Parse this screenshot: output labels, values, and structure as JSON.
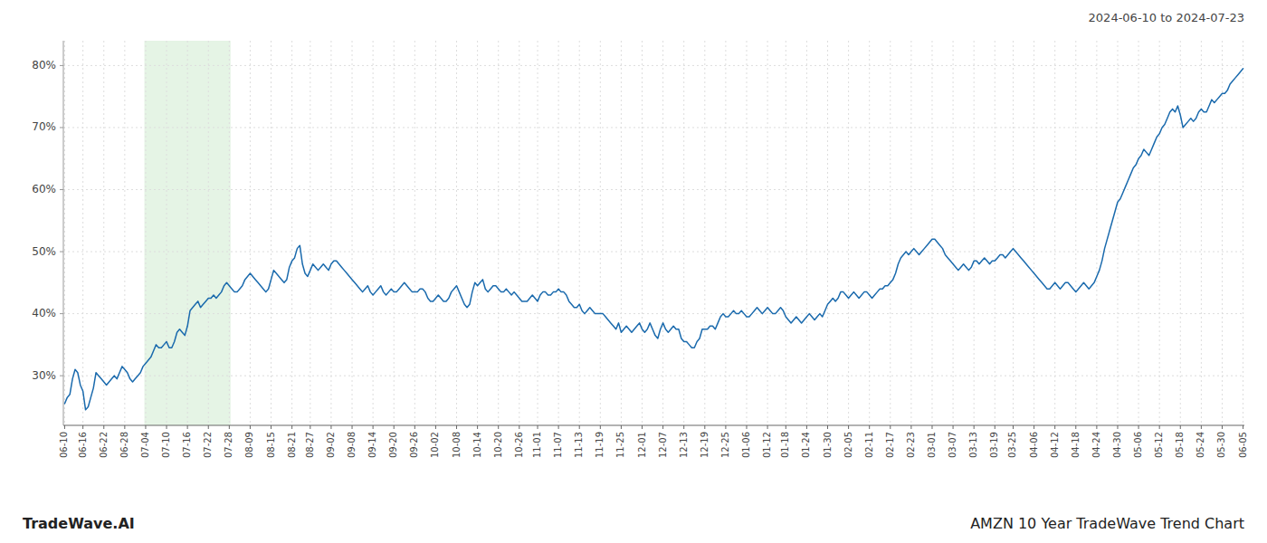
{
  "chart_data": {
    "type": "line",
    "title": "AMZN 10 Year TradeWave Trend Chart",
    "subtitle": "2024-06-10 to 2024-07-23",
    "annotations": [
      "TradeWave.AI"
    ],
    "color": "#1a6aad",
    "grid": true,
    "ylim": [
      22,
      84
    ],
    "yticks": [
      {
        "value": 30,
        "label": "30%"
      },
      {
        "value": 40,
        "label": "40%"
      },
      {
        "value": 50,
        "label": "50%"
      },
      {
        "value": 60,
        "label": "60%"
      },
      {
        "value": 70,
        "label": "70%"
      },
      {
        "value": 80,
        "label": "80%"
      }
    ],
    "highlight": {
      "start": "07-04",
      "end": "07-28",
      "color": "#d4ecd4"
    },
    "categories": [
      "06-10",
      null,
      null,
      null,
      null,
      null,
      null,
      "06-16",
      null,
      null,
      null,
      null,
      null,
      null,
      null,
      "06-22",
      null,
      null,
      null,
      null,
      null,
      null,
      null,
      "06-28",
      null,
      null,
      null,
      null,
      null,
      null,
      null,
      "07-04",
      null,
      null,
      null,
      null,
      null,
      null,
      null,
      "07-10",
      null,
      null,
      null,
      null,
      null,
      null,
      null,
      "07-16",
      null,
      null,
      null,
      null,
      null,
      null,
      null,
      "07-22",
      null,
      null,
      null,
      null,
      null,
      null,
      null,
      "07-28",
      null,
      null,
      null,
      null,
      null,
      null,
      null,
      "08-09",
      null,
      null,
      null,
      null,
      null,
      null,
      null,
      "08-15",
      null,
      null,
      null,
      null,
      null,
      null,
      null,
      "08-21",
      null,
      null,
      null,
      null,
      null,
      null,
      "08-27",
      null,
      null,
      null,
      null,
      null,
      null,
      null,
      "09-02",
      null,
      null,
      null,
      null,
      null,
      null,
      null,
      "09-08",
      null,
      null,
      null,
      null,
      null,
      null,
      null,
      "09-14",
      null,
      null,
      null,
      null,
      null,
      null,
      null,
      "09-20",
      null,
      null,
      null,
      null,
      null,
      null,
      null,
      "09-26",
      null,
      null,
      null,
      null,
      null,
      null,
      null,
      "10-02",
      null,
      null,
      null,
      null,
      null,
      null,
      null,
      "10-08",
      null,
      null,
      null,
      null,
      null,
      null,
      null,
      "10-14",
      null,
      null,
      null,
      null,
      null,
      null,
      null,
      "10-20",
      null,
      null,
      null,
      null,
      null,
      null,
      null,
      "10-26",
      null,
      null,
      null,
      null,
      null,
      null,
      "11-01",
      null,
      null,
      null,
      null,
      null,
      null,
      null,
      "11-07",
      null,
      null,
      null,
      null,
      null,
      null,
      null,
      "11-13",
      null,
      null,
      null,
      null,
      null,
      null,
      null,
      "11-19",
      null,
      null,
      null,
      null,
      null,
      null,
      null,
      "11-25",
      null,
      null,
      null,
      null,
      null,
      null,
      null,
      "12-01",
      null,
      null,
      null,
      null,
      null,
      null,
      null,
      "12-07",
      null,
      null,
      null,
      null,
      null,
      null,
      null,
      "12-13",
      null,
      null,
      null,
      null,
      null,
      null,
      null,
      "12-19",
      null,
      null,
      null,
      null,
      null,
      null,
      null,
      "12-25",
      null,
      null,
      null,
      null,
      null,
      null,
      null,
      "01-06",
      null,
      null,
      null,
      null,
      null,
      null,
      null,
      "01-12",
      null,
      null,
      null,
      null,
      null,
      null,
      "01-18",
      null,
      null,
      null,
      null,
      null,
      null,
      null,
      "01-24",
      null,
      null,
      null,
      null,
      null,
      null,
      null,
      "01-30",
      null,
      null,
      null,
      null,
      null,
      null,
      null,
      "02-05",
      null,
      null,
      null,
      null,
      null,
      null,
      null,
      "02-11",
      null,
      null,
      null,
      null,
      null,
      null,
      null,
      "02-17",
      null,
      null,
      null,
      null,
      null,
      null,
      null,
      "02-23",
      null,
      null,
      null,
      null,
      null,
      null,
      null,
      "03-01",
      null,
      null,
      null,
      null,
      null,
      null,
      null,
      "03-07",
      null,
      null,
      null,
      null,
      null,
      null,
      null,
      "03-13",
      null,
      null,
      null,
      null,
      null,
      null,
      null,
      "03-19",
      null,
      null,
      null,
      null,
      null,
      null,
      "03-25",
      null,
      null,
      null,
      null,
      null,
      null,
      null,
      "04-06",
      null,
      null,
      null,
      null,
      null,
      null,
      null,
      "04-12",
      null,
      null,
      null,
      null,
      null,
      null,
      null,
      "04-18",
      null,
      null,
      null,
      null,
      null,
      null,
      null,
      "04-24",
      null,
      null,
      null,
      null,
      null,
      null,
      null,
      "04-30",
      null,
      null,
      null,
      null,
      null,
      null,
      null,
      "05-06",
      null,
      null,
      null,
      null,
      null,
      null,
      null,
      "05-12",
      null,
      null,
      null,
      null,
      null,
      null,
      null,
      "05-18",
      null,
      null,
      null,
      null,
      null,
      null,
      null,
      "05-24",
      null,
      null,
      null,
      null,
      null,
      null,
      null,
      "05-30",
      null,
      null,
      null,
      null,
      null,
      null,
      null,
      "06-05"
    ],
    "values": [
      25.5,
      26.5,
      27.0,
      29.5,
      31.0,
      30.5,
      28.5,
      27.5,
      24.5,
      25.0,
      26.5,
      28.0,
      30.5,
      30.0,
      29.5,
      29.0,
      28.5,
      29.0,
      29.5,
      30.0,
      29.5,
      30.5,
      31.5,
      31.0,
      30.5,
      29.5,
      29.0,
      29.5,
      30.0,
      30.5,
      31.5,
      32.0,
      32.5,
      33.0,
      34.0,
      35.0,
      34.5,
      34.5,
      35.0,
      35.5,
      34.5,
      34.5,
      35.5,
      37.0,
      37.5,
      37.0,
      36.5,
      38.0,
      40.5,
      41.0,
      41.5,
      42.0,
      41.0,
      41.5,
      42.0,
      42.5,
      42.5,
      43.0,
      42.5,
      43.0,
      43.5,
      44.5,
      45.0,
      44.5,
      44.0,
      43.5,
      43.5,
      44.0,
      44.5,
      45.5,
      46.0,
      46.5,
      46.0,
      45.5,
      45.0,
      44.5,
      44.0,
      43.5,
      44.0,
      45.5,
      47.0,
      46.5,
      46.0,
      45.5,
      45.0,
      45.5,
      47.5,
      48.5,
      49.0,
      50.5,
      51.0,
      48.0,
      46.5,
      46.0,
      47.0,
      48.0,
      47.5,
      47.0,
      47.5,
      48.0,
      47.5,
      47.0,
      48.0,
      48.5,
      48.5,
      48.0,
      47.5,
      47.0,
      46.5,
      46.0,
      45.5,
      45.0,
      44.5,
      44.0,
      43.5,
      44.0,
      44.5,
      43.5,
      43.0,
      43.5,
      44.0,
      44.5,
      43.5,
      43.0,
      43.5,
      44.0,
      43.5,
      43.5,
      44.0,
      44.5,
      45.0,
      44.5,
      44.0,
      43.5,
      43.5,
      43.5,
      44.0,
      44.0,
      43.5,
      42.5,
      42.0,
      42.0,
      42.5,
      43.0,
      42.5,
      42.0,
      42.0,
      42.5,
      43.5,
      44.0,
      44.5,
      43.5,
      42.5,
      41.5,
      41.0,
      41.5,
      43.5,
      45.0,
      44.5,
      45.0,
      45.5,
      44.0,
      43.5,
      44.0,
      44.5,
      44.5,
      44.0,
      43.5,
      43.5,
      44.0,
      43.5,
      43.0,
      43.5,
      43.0,
      42.5,
      42.0,
      42.0,
      42.0,
      42.5,
      43.0,
      42.5,
      42.0,
      43.0,
      43.5,
      43.5,
      43.0,
      43.0,
      43.5,
      43.5,
      44.0,
      43.5,
      43.5,
      43.0,
      42.0,
      41.5,
      41.0,
      41.0,
      41.5,
      40.5,
      40.0,
      40.5,
      41.0,
      40.5,
      40.0,
      40.0,
      40.0,
      40.0,
      39.5,
      39.0,
      38.5,
      38.0,
      37.5,
      38.5,
      37.0,
      37.5,
      38.0,
      37.5,
      37.0,
      37.5,
      38.0,
      38.5,
      37.5,
      37.0,
      37.5,
      38.5,
      37.5,
      36.5,
      36.0,
      37.5,
      38.5,
      37.5,
      37.0,
      37.5,
      38.0,
      37.5,
      37.5,
      36.0,
      35.5,
      35.5,
      35.0,
      34.5,
      34.5,
      35.5,
      36.0,
      37.5,
      37.5,
      37.5,
      38.0,
      38.0,
      37.5,
      38.5,
      39.5,
      40.0,
      39.5,
      39.5,
      40.0,
      40.5,
      40.0,
      40.0,
      40.5,
      40.0,
      39.5,
      39.5,
      40.0,
      40.5,
      41.0,
      40.5,
      40.0,
      40.5,
      41.0,
      40.5,
      40.0,
      40.0,
      40.5,
      41.0,
      40.5,
      39.5,
      39.0,
      38.5,
      39.0,
      39.5,
      39.0,
      38.5,
      39.0,
      39.5,
      40.0,
      39.5,
      39.0,
      39.5,
      40.0,
      39.5,
      40.5,
      41.5,
      42.0,
      42.5,
      42.0,
      42.5,
      43.5,
      43.5,
      43.0,
      42.5,
      43.0,
      43.5,
      43.0,
      42.5,
      43.0,
      43.5,
      43.5,
      43.0,
      42.5,
      43.0,
      43.5,
      44.0,
      44.0,
      44.5,
      44.5,
      45.0,
      45.5,
      46.5,
      48.0,
      49.0,
      49.5,
      50.0,
      49.5,
      50.0,
      50.5,
      50.0,
      49.5,
      50.0,
      50.5,
      51.0,
      51.5,
      52.0,
      52.0,
      51.5,
      51.0,
      50.5,
      49.5,
      49.0,
      48.5,
      48.0,
      47.5,
      47.0,
      47.5,
      48.0,
      47.5,
      47.0,
      47.5,
      48.5,
      48.5,
      48.0,
      48.5,
      49.0,
      48.5,
      48.0,
      48.5,
      48.5,
      49.0,
      49.5,
      49.5,
      49.0,
      49.5,
      50.0,
      50.5,
      50.0,
      49.5,
      49.0,
      48.5,
      48.0,
      47.5,
      47.0,
      46.5,
      46.0,
      45.5,
      45.0,
      44.5,
      44.0,
      44.0,
      44.5,
      45.0,
      44.5,
      44.0,
      44.5,
      45.0,
      45.0,
      44.5,
      44.0,
      43.5,
      44.0,
      44.5,
      45.0,
      44.5,
      44.0,
      44.5,
      45.0,
      46.0,
      47.0,
      48.5,
      50.5,
      52.0,
      53.5,
      55.0,
      56.5,
      58.0,
      58.5,
      59.5,
      60.5,
      61.5,
      62.5,
      63.5,
      64.0,
      65.0,
      65.5,
      66.5,
      66.0,
      65.5,
      66.5,
      67.5,
      68.5,
      69.0,
      70.0,
      70.5,
      71.5,
      72.5,
      73.0,
      72.5,
      73.5,
      72.0,
      70.0,
      70.5,
      71.0,
      71.5,
      71.0,
      71.5,
      72.5,
      73.0,
      72.5,
      72.5,
      73.5,
      74.5,
      74.0,
      74.5,
      75.0,
      75.5,
      75.5,
      76.0,
      77.0,
      77.5,
      78.0,
      78.5,
      79.0,
      79.5
    ]
  }
}
